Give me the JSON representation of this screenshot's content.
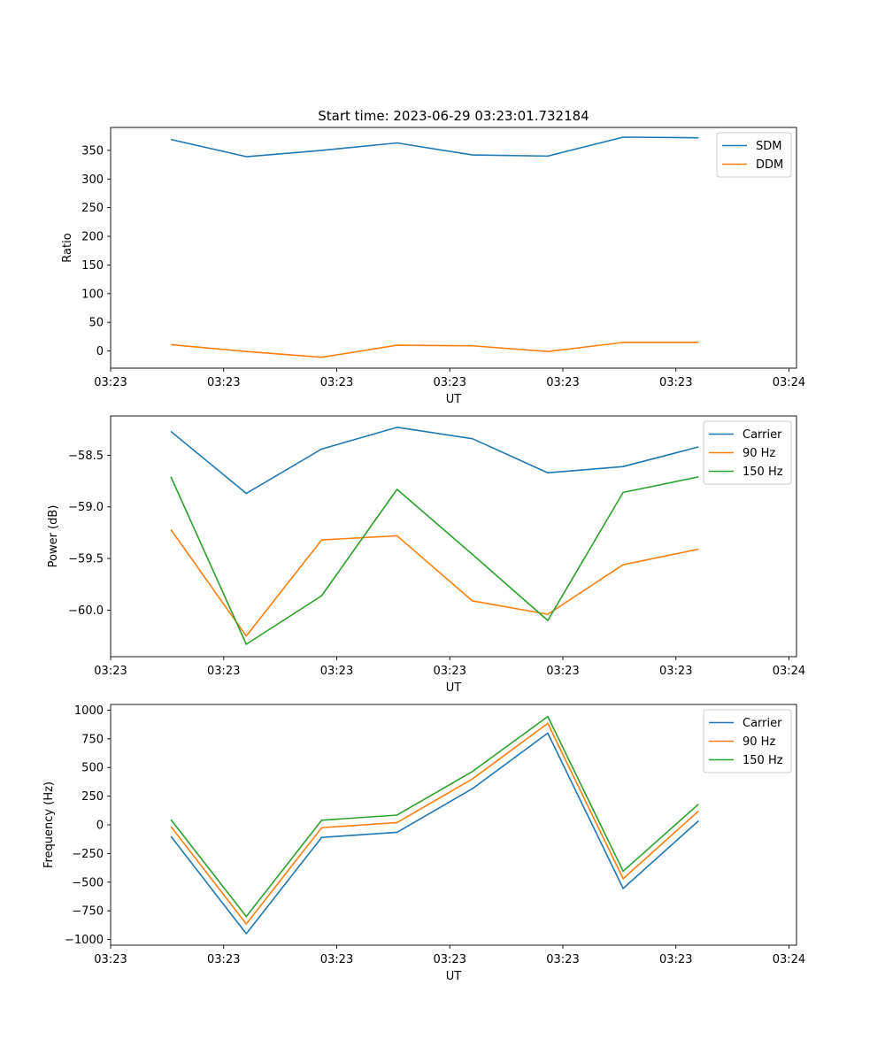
{
  "figure": {
    "title": "Start time: 2023-06-29 03:23:01.732184"
  },
  "chart_data": [
    {
      "type": "line",
      "title": "Start time: 2023-06-29 03:23:01.732184",
      "xlabel": "UT",
      "ylabel": "Ratio",
      "x": [
        1,
        2,
        3,
        4,
        5,
        6,
        7,
        8
      ],
      "xlim": [
        0.2,
        9.3
      ],
      "x_ticks": [
        0.2,
        1.7,
        3.2,
        4.7,
        6.2,
        7.7,
        9.2
      ],
      "x_tick_labels": [
        "03:23",
        "03:23",
        "03:23",
        "03:23",
        "03:23",
        "03:23",
        "03:24"
      ],
      "ylim": [
        -30,
        390
      ],
      "y_ticks": [
        0,
        50,
        100,
        150,
        200,
        250,
        300,
        350
      ],
      "y_tick_labels": [
        "0",
        "50",
        "100",
        "150",
        "200",
        "250",
        "300",
        "350"
      ],
      "legend_position": "upper right",
      "series": [
        {
          "name": "SDM",
          "color": "#1f77b4",
          "values": [
            369,
            339,
            350,
            363,
            342,
            340,
            373,
            372
          ]
        },
        {
          "name": "DDM",
          "color": "#ff7f0e",
          "values": [
            11,
            -1,
            -11,
            10,
            9,
            -1,
            15,
            15
          ]
        }
      ]
    },
    {
      "type": "line",
      "title": "",
      "xlabel": "UT",
      "ylabel": "Power (dB)",
      "x": [
        1,
        2,
        3,
        4,
        5,
        6,
        7,
        8
      ],
      "xlim": [
        0.2,
        9.3
      ],
      "x_ticks": [
        0.2,
        1.7,
        3.2,
        4.7,
        6.2,
        7.7,
        9.2
      ],
      "x_tick_labels": [
        "03:23",
        "03:23",
        "03:23",
        "03:23",
        "03:23",
        "03:23",
        "03:24"
      ],
      "ylim": [
        -60.45,
        -58.12
      ],
      "y_ticks": [
        -58.5,
        -59.0,
        -59.5,
        -60.0
      ],
      "y_tick_labels": [
        "−58.5",
        "−59.0",
        "−59.5",
        "−60.0"
      ],
      "legend_position": "upper right",
      "series": [
        {
          "name": "Carrier",
          "color": "#1f77b4",
          "values": [
            -58.27,
            -58.87,
            -58.44,
            -58.23,
            -58.34,
            -58.67,
            -58.61,
            -58.42
          ]
        },
        {
          "name": "90 Hz",
          "color": "#ff7f0e",
          "values": [
            -59.22,
            -60.25,
            -59.32,
            -59.28,
            -59.91,
            -60.04,
            -59.56,
            -59.41
          ]
        },
        {
          "name": "150 Hz",
          "color": "#2ca02c",
          "values": [
            -58.71,
            -60.33,
            -59.86,
            -58.83,
            -59.46,
            -60.1,
            -58.86,
            -58.71
          ]
        }
      ]
    },
    {
      "type": "line",
      "title": "",
      "xlabel": "UT",
      "ylabel": "Frequency (Hz)",
      "x": [
        1,
        2,
        3,
        4,
        5,
        6,
        7,
        8
      ],
      "xlim": [
        0.2,
        9.3
      ],
      "x_ticks": [
        0.2,
        1.7,
        3.2,
        4.7,
        6.2,
        7.7,
        9.2
      ],
      "x_tick_labels": [
        "03:23",
        "03:23",
        "03:23",
        "03:23",
        "03:23",
        "03:23",
        "03:24"
      ],
      "ylim": [
        -1050,
        1050
      ],
      "y_ticks": [
        1000,
        750,
        500,
        250,
        0,
        -250,
        -500,
        -750,
        -1000
      ],
      "y_tick_labels": [
        "1000",
        "750",
        "500",
        "250",
        "0",
        "−250",
        "−500",
        "−750",
        "−1000"
      ],
      "legend_position": "upper right",
      "series": [
        {
          "name": "Carrier",
          "color": "#1f77b4",
          "values": [
            -100,
            -950,
            -110,
            -65,
            315,
            800,
            -555,
            35
          ]
        },
        {
          "name": "90 Hz",
          "color": "#ff7f0e",
          "values": [
            -15,
            -865,
            -25,
            20,
            400,
            885,
            -470,
            120
          ]
        },
        {
          "name": "150 Hz",
          "color": "#2ca02c",
          "values": [
            45,
            -800,
            40,
            85,
            465,
            945,
            -405,
            180
          ]
        }
      ]
    }
  ]
}
